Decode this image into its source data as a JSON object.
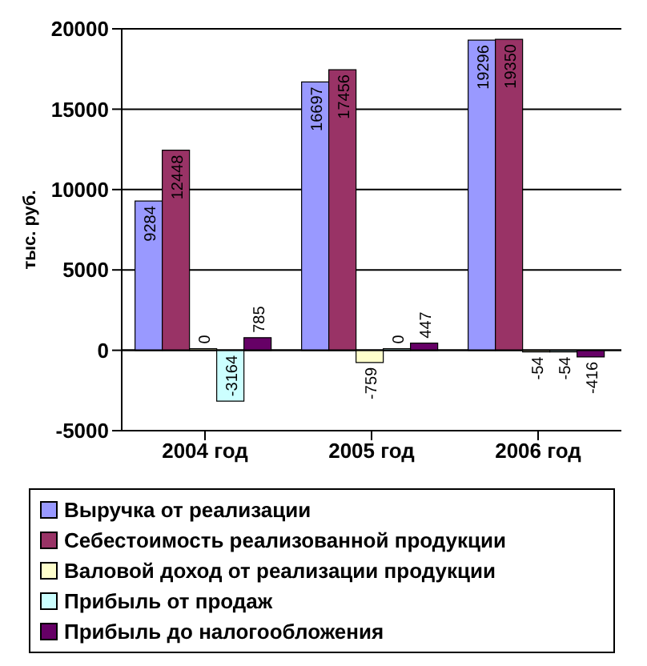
{
  "chart_data": {
    "type": "bar",
    "ylabel": "тыс. руб.",
    "categories": [
      "2004 год",
      "2005 год",
      "2006 год"
    ],
    "series": [
      {
        "name": "Выручка от реализации",
        "color": "#9999ff",
        "values": [
          9284,
          16697,
          19296
        ]
      },
      {
        "name": "Себестоимость реализованной продукции",
        "color": "#993366",
        "values": [
          12448,
          17456,
          19350
        ]
      },
      {
        "name": "Валовой доход от реализации продукции",
        "color": "#ffffcc",
        "values": [
          0,
          -759,
          -54
        ]
      },
      {
        "name": "Прибыль от продаж",
        "color": "#ccffff",
        "values": [
          -3164,
          0,
          -54
        ]
      },
      {
        "name": "Прибыль до налогообложения",
        "color": "#660066",
        "values": [
          785,
          447,
          -416
        ]
      }
    ],
    "ylim": [
      -5000,
      20000
    ],
    "yticks": [
      -5000,
      0,
      5000,
      10000,
      15000,
      20000
    ],
    "grid": "y",
    "legend": "bottom",
    "data_labels": true
  }
}
